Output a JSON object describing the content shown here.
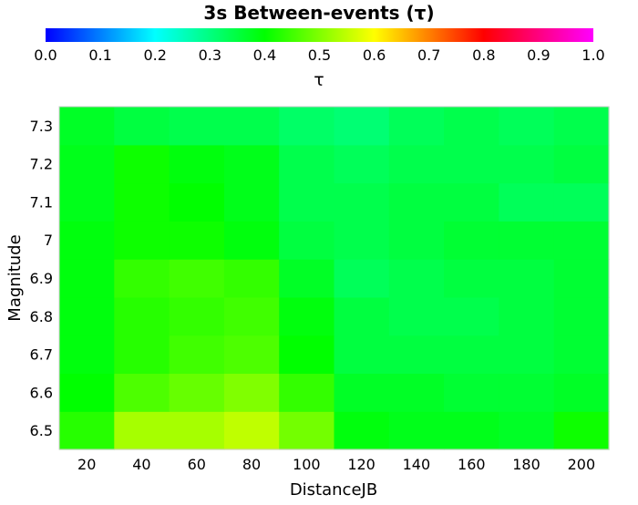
{
  "chart_data": {
    "type": "heatmap",
    "title": "3s Between-events (τ)",
    "colorbar": {
      "label": "τ",
      "range": [
        0.0,
        1.0
      ],
      "ticks": [
        "0.0",
        "0.1",
        "0.2",
        "0.3",
        "0.4",
        "0.5",
        "0.6",
        "0.7",
        "0.8",
        "0.9",
        "1.0"
      ],
      "colormap": [
        "#0000ff",
        "#00ffff",
        "#00ff00",
        "#ffff00",
        "#ff0000",
        "#ff00ff"
      ]
    },
    "xlabel": "DistanceJB",
    "ylabel": "Magnitude",
    "x": [
      20,
      40,
      60,
      80,
      100,
      120,
      140,
      160,
      180,
      200
    ],
    "y": [
      6.5,
      6.6,
      6.7,
      6.8,
      6.9,
      7.0,
      7.1,
      7.2,
      7.3
    ],
    "x_tick_labels": [
      "20",
      "40",
      "60",
      "80",
      "100",
      "120",
      "140",
      "160",
      "180",
      "200"
    ],
    "y_tick_labels": [
      "6.5",
      "6.6",
      "6.7",
      "6.8",
      "6.9",
      "7",
      "7.1",
      "7.2",
      "7.3"
    ],
    "values": [
      [
        0.43,
        0.53,
        0.53,
        0.55,
        0.49,
        0.39,
        0.38,
        0.38,
        0.37,
        0.41
      ],
      [
        0.4,
        0.46,
        0.48,
        0.5,
        0.44,
        0.37,
        0.37,
        0.36,
        0.36,
        0.37
      ],
      [
        0.39,
        0.43,
        0.45,
        0.46,
        0.4,
        0.35,
        0.35,
        0.35,
        0.35,
        0.36
      ],
      [
        0.39,
        0.43,
        0.44,
        0.45,
        0.39,
        0.35,
        0.34,
        0.34,
        0.35,
        0.36
      ],
      [
        0.39,
        0.44,
        0.45,
        0.44,
        0.37,
        0.33,
        0.34,
        0.35,
        0.35,
        0.36
      ],
      [
        0.39,
        0.41,
        0.41,
        0.39,
        0.35,
        0.34,
        0.35,
        0.36,
        0.36,
        0.36
      ],
      [
        0.38,
        0.41,
        0.4,
        0.38,
        0.34,
        0.34,
        0.35,
        0.35,
        0.33,
        0.33
      ],
      [
        0.38,
        0.41,
        0.39,
        0.38,
        0.34,
        0.33,
        0.34,
        0.34,
        0.34,
        0.35
      ],
      [
        0.37,
        0.35,
        0.34,
        0.34,
        0.32,
        0.31,
        0.33,
        0.34,
        0.33,
        0.34
      ]
    ]
  }
}
